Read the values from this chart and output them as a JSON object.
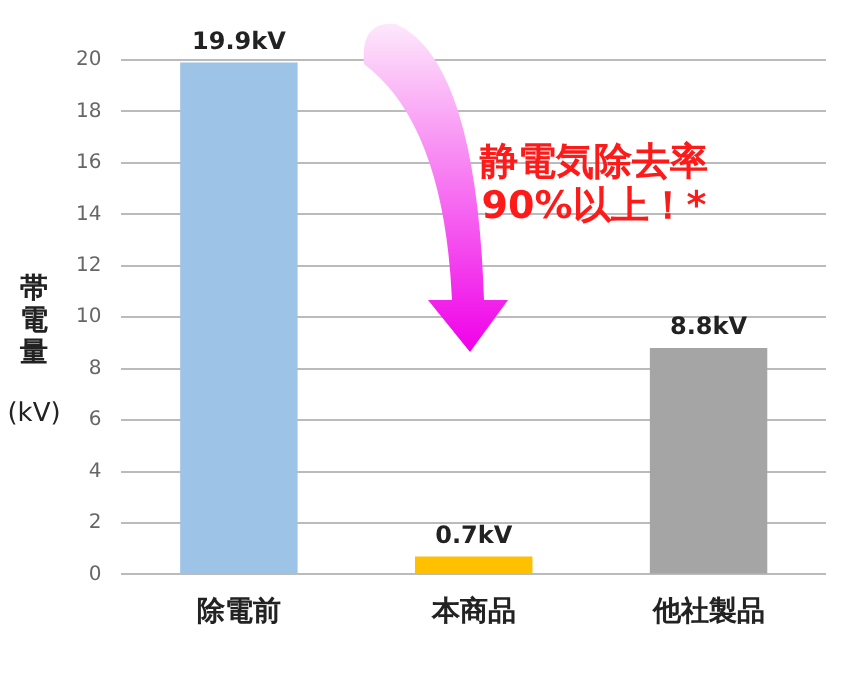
{
  "chart_data": {
    "type": "bar",
    "categories": [
      "除電前",
      "本商品",
      "他社製品"
    ],
    "values": [
      19.9,
      0.7,
      8.8
    ],
    "colors": [
      "#9dc3e6",
      "#ffc000",
      "#a5a5a5"
    ],
    "value_labels": [
      "19.9kV",
      "0.7kV",
      "8.8kV"
    ],
    "ylabel": "帯電量(kV)",
    "ylim": [
      0,
      20
    ],
    "yticks": [
      0,
      2,
      4,
      6,
      8,
      10,
      12,
      14,
      16,
      18,
      20
    ],
    "grid": "y",
    "legend": false,
    "annotations": [
      "静電気除去率\n90%以上！*"
    ]
  }
}
